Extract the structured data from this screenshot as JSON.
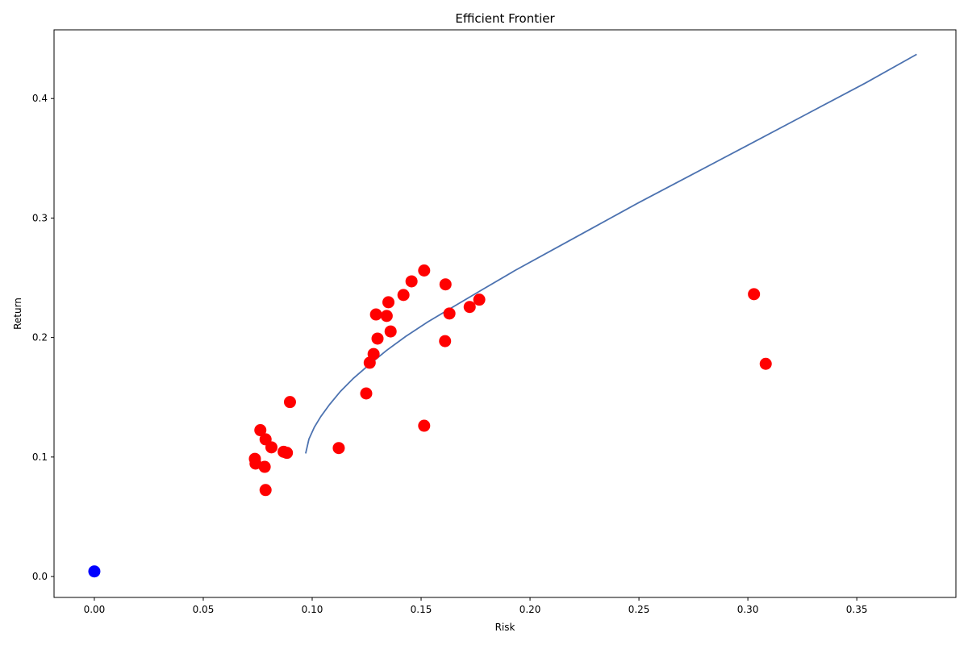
{
  "chart_data": {
    "type": "scatter",
    "title": "Efficient Frontier",
    "xlabel": "Risk",
    "ylabel": "Return",
    "xlim": [
      -0.0185,
      0.3955
    ],
    "ylim": [
      -0.0175,
      0.4575
    ],
    "xticks": [
      0.0,
      0.05,
      0.1,
      0.15,
      0.2,
      0.25,
      0.3,
      0.35
    ],
    "xtick_labels": [
      "0.00",
      "0.05",
      "0.10",
      "0.15",
      "0.20",
      "0.25",
      "0.30",
      "0.35"
    ],
    "yticks": [
      0.0,
      0.1,
      0.2,
      0.3,
      0.4
    ],
    "ytick_labels": [
      "0.0",
      "0.1",
      "0.2",
      "0.3",
      "0.4"
    ],
    "grid": false,
    "series": [
      {
        "kind": "line",
        "color": "#4c72b0",
        "points": [
          [
            0.097,
            0.103
          ],
          [
            0.0985,
            0.115
          ],
          [
            0.101,
            0.125
          ],
          [
            0.104,
            0.134
          ],
          [
            0.108,
            0.144
          ],
          [
            0.113,
            0.155
          ],
          [
            0.119,
            0.166
          ],
          [
            0.126,
            0.177
          ],
          [
            0.134,
            0.189
          ],
          [
            0.143,
            0.201
          ],
          [
            0.153,
            0.213
          ],
          [
            0.165,
            0.226
          ],
          [
            0.178,
            0.24
          ],
          [
            0.193,
            0.256
          ],
          [
            0.21,
            0.273
          ],
          [
            0.229,
            0.292
          ],
          [
            0.25,
            0.313
          ],
          [
            0.274,
            0.336
          ],
          [
            0.3,
            0.361
          ],
          [
            0.327,
            0.387
          ],
          [
            0.354,
            0.413
          ],
          [
            0.3775,
            0.437
          ]
        ]
      },
      {
        "kind": "scatter",
        "color": "#ff0000",
        "points": [
          [
            0.0737,
            0.0985
          ],
          [
            0.074,
            0.0945
          ],
          [
            0.0762,
            0.1225
          ],
          [
            0.0786,
            0.1148
          ],
          [
            0.0782,
            0.0918
          ],
          [
            0.0786,
            0.0724
          ],
          [
            0.0813,
            0.1081
          ],
          [
            0.0869,
            0.1044
          ],
          [
            0.0884,
            0.1035
          ],
          [
            0.0898,
            0.146
          ],
          [
            0.1122,
            0.1075
          ],
          [
            0.1248,
            0.1532
          ],
          [
            0.1264,
            0.1789
          ],
          [
            0.1282,
            0.1862
          ],
          [
            0.1293,
            0.2193
          ],
          [
            0.13,
            0.1991
          ],
          [
            0.1342,
            0.2181
          ],
          [
            0.135,
            0.2295
          ],
          [
            0.136,
            0.2051
          ],
          [
            0.1419,
            0.2356
          ],
          [
            0.1456,
            0.247
          ],
          [
            0.1514,
            0.2561
          ],
          [
            0.1514,
            0.1262
          ],
          [
            0.161,
            0.197
          ],
          [
            0.1612,
            0.2445
          ],
          [
            0.163,
            0.2201
          ],
          [
            0.1723,
            0.2256
          ],
          [
            0.1767,
            0.2317
          ],
          [
            0.3028,
            0.2363
          ],
          [
            0.3082,
            0.178
          ]
        ]
      },
      {
        "kind": "scatter",
        "color": "#0000ff",
        "points": [
          [
            0.0,
            0.0043
          ]
        ]
      }
    ]
  }
}
